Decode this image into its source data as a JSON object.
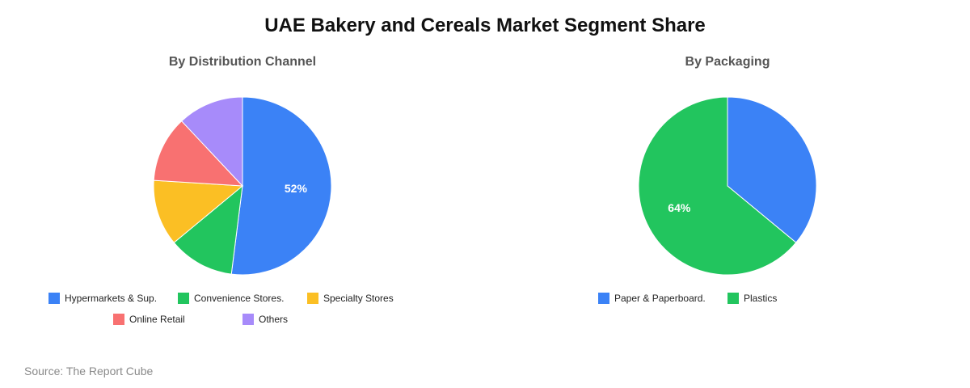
{
  "title": "UAE Bakery and Cereals Market Segment Share",
  "source": "Source: The Report Cube",
  "chart_data": [
    {
      "type": "pie",
      "title": "By Distribution Channel",
      "categories": [
        "Hypermarkets & Sup.",
        "Convenience Stores.",
        "Specialty Stores",
        "Online Retail",
        "Others"
      ],
      "values": [
        52,
        12,
        12,
        12,
        12
      ],
      "colors": [
        "#3b82f6",
        "#22c55e",
        "#fbbf24",
        "#f87171",
        "#a78bfa"
      ],
      "data_labels": [
        "52%",
        "",
        "",
        "",
        ""
      ],
      "legend_position": "bottom"
    },
    {
      "type": "pie",
      "title": "By Packaging",
      "categories": [
        "Paper & Paperboard.",
        "Plastics"
      ],
      "values": [
        36,
        64
      ],
      "colors": [
        "#3b82f6",
        "#22c55e"
      ],
      "data_labels": [
        "",
        "64%"
      ],
      "legend_position": "bottom"
    }
  ]
}
